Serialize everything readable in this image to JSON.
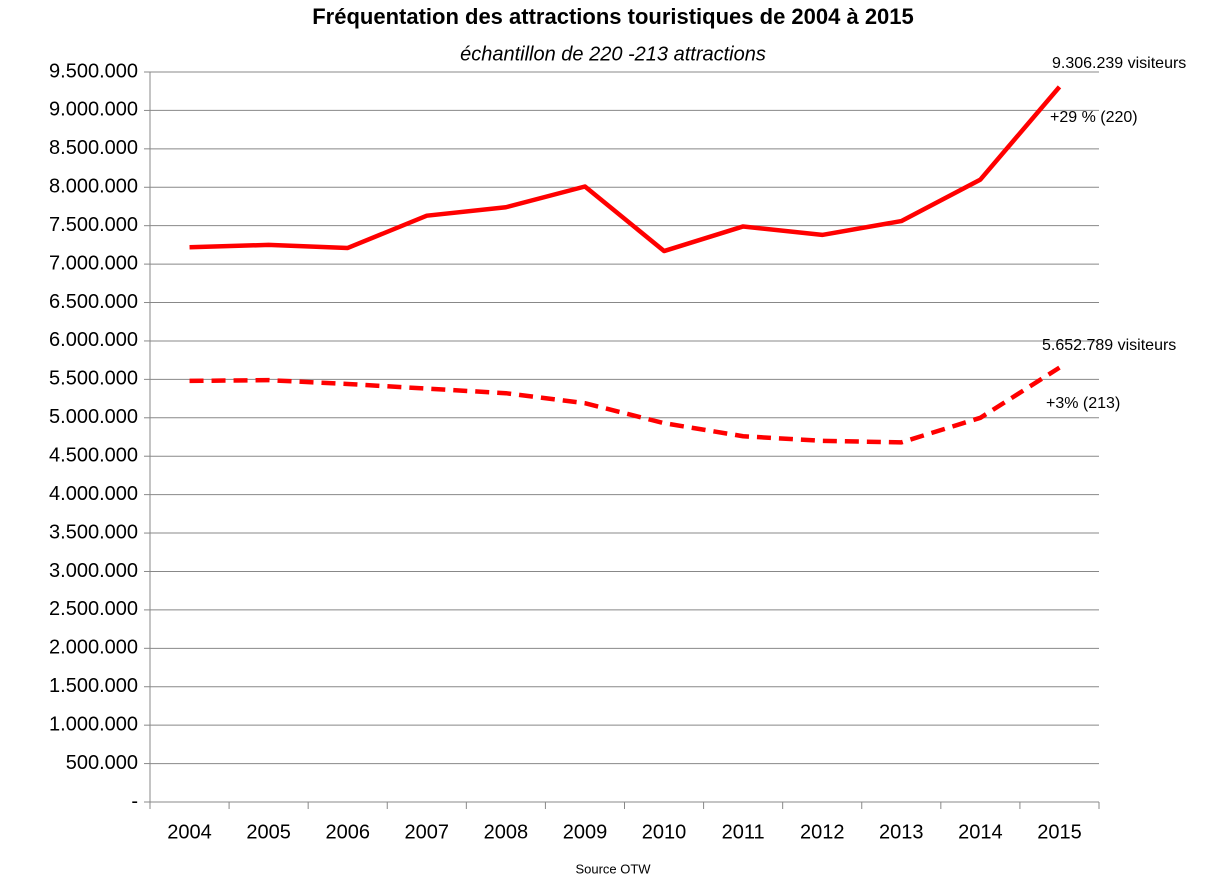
{
  "chart_data": {
    "type": "line",
    "title": "Fréquentation des attractions touristiques de 2004 à 2015",
    "subtitle": "échantillon de 220 -213 attractions",
    "categories": [
      "2004",
      "2005",
      "2006",
      "2007",
      "2008",
      "2009",
      "2010",
      "2011",
      "2012",
      "2013",
      "2014",
      "2015"
    ],
    "series": [
      {
        "color": "#ff0000",
        "dash": false,
        "values": [
          7220000,
          7250000,
          7210000,
          7630000,
          7740000,
          8010000,
          7170000,
          7490000,
          7380000,
          7560000,
          8100000,
          9306239
        ]
      },
      {
        "color": "#ff0000",
        "dash": true,
        "values": [
          5480000,
          5490000,
          5440000,
          5380000,
          5320000,
          5190000,
          4930000,
          4760000,
          4700000,
          4680000,
          5000000,
          5652789
        ]
      }
    ],
    "ylim": [
      0,
      9500000
    ],
    "yticks": [
      {
        "value": 0,
        "label": "-"
      },
      {
        "value": 500000,
        "label": "500.000"
      },
      {
        "value": 1000000,
        "label": "1.000.000"
      },
      {
        "value": 1500000,
        "label": "1.500.000"
      },
      {
        "value": 2000000,
        "label": "2.000.000"
      },
      {
        "value": 2500000,
        "label": "2.500.000"
      },
      {
        "value": 3000000,
        "label": "3.000.000"
      },
      {
        "value": 3500000,
        "label": "3.500.000"
      },
      {
        "value": 4000000,
        "label": "4.000.000"
      },
      {
        "value": 4500000,
        "label": "4.500.000"
      },
      {
        "value": 5000000,
        "label": "5.000.000"
      },
      {
        "value": 5500000,
        "label": "5.500.000"
      },
      {
        "value": 6000000,
        "label": "6.000.000"
      },
      {
        "value": 6500000,
        "label": "6.500.000"
      },
      {
        "value": 7000000,
        "label": "7.000.000"
      },
      {
        "value": 7500000,
        "label": "7.500.000"
      },
      {
        "value": 8000000,
        "label": "8.000.000"
      },
      {
        "value": 8500000,
        "label": "8.500.000"
      },
      {
        "value": 9000000,
        "label": "9.000.000"
      },
      {
        "value": 9500000,
        "label": "9.500.000"
      }
    ],
    "grid": true,
    "annotations": [
      "9.306.239 visiteurs",
      "+29 % (220)",
      "5.652.789 visiteurs",
      "+3% (213)"
    ],
    "source": "Source OTW"
  }
}
